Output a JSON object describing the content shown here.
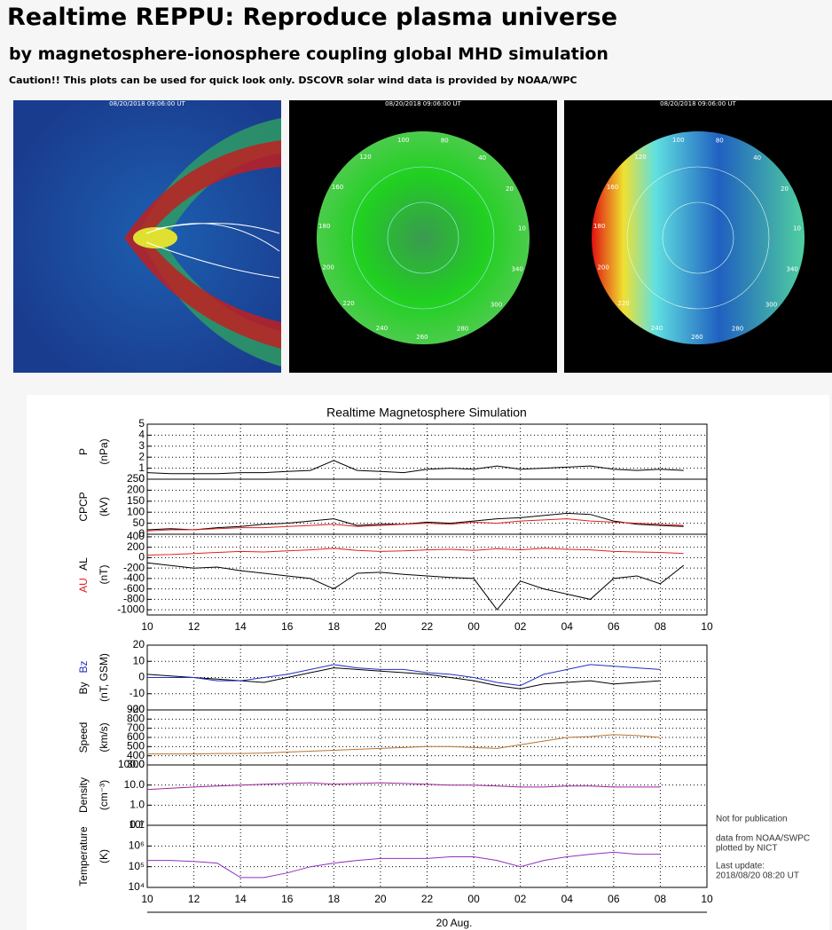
{
  "header": {
    "title": "Realtime REPPU: Reproduce plasma universe",
    "subtitle": "by magnetosphere-ionosphere coupling global MHD simulation",
    "caution": "Caution!! This plots can be used for quick look only. DSCOVR solar wind data is provided by NOAA/WPC"
  },
  "images": [
    {
      "timestamp": "08/20/2018 09:06:00 UT"
    },
    {
      "timestamp": "08/20/2018 09:06:00 UT",
      "labels": [
        "100",
        "80",
        "40",
        "20",
        "10",
        "340",
        "300",
        "280",
        "260",
        "240",
        "220",
        "200",
        "180",
        "160",
        "120"
      ]
    },
    {
      "timestamp": "08/20/2018 09:06:00 UT",
      "labels": [
        "100",
        "80",
        "40",
        "20",
        "10",
        "340",
        "300",
        "280",
        "260",
        "240",
        "220",
        "200",
        "180",
        "160",
        "120"
      ]
    }
  ],
  "plot_title": "Realtime Magnetosphere Simulation",
  "xlabel": "20 Aug.",
  "notes": {
    "publication": "Not for publication",
    "source": "data from NOAA/SWPC",
    "plotted": "plotted by NICT",
    "update_label": "Last update:",
    "update_time": "2018/08/20 08:20 UT"
  },
  "chart_data": [
    {
      "type": "line",
      "ylabel": "P",
      "yunit": "(nPa)",
      "xlim": [
        10,
        34
      ],
      "ylim": [
        0,
        5
      ],
      "yticks": [
        0,
        1,
        2,
        3,
        4,
        5
      ],
      "grid": true,
      "x": [
        10,
        11,
        12,
        13,
        14,
        15,
        16,
        17,
        18,
        19,
        20,
        21,
        22,
        23,
        24,
        25,
        26,
        27,
        28,
        29,
        30,
        31,
        32,
        33
      ],
      "color": "#000000",
      "values": [
        0.6,
        0.5,
        0.5,
        0.5,
        0.6,
        0.6,
        0.7,
        0.8,
        1.7,
        0.8,
        0.7,
        0.6,
        0.9,
        1.0,
        0.9,
        1.2,
        0.9,
        1.0,
        1.1,
        1.2,
        0.9,
        0.8,
        0.9,
        0.8
      ]
    },
    {
      "type": "line",
      "ylabel": "CPCP",
      "yunit": "(kV)",
      "xlim": [
        10,
        34
      ],
      "ylim": [
        0,
        250
      ],
      "yticks": [
        0,
        50,
        100,
        150,
        200,
        250
      ],
      "grid": true,
      "x": [
        10,
        11,
        12,
        13,
        14,
        15,
        16,
        17,
        18,
        19,
        20,
        21,
        22,
        23,
        24,
        25,
        26,
        27,
        28,
        29,
        30,
        31,
        32,
        33
      ],
      "series": [
        {
          "color": "#000000",
          "values": [
            20,
            25,
            20,
            30,
            35,
            45,
            50,
            60,
            70,
            40,
            45,
            45,
            55,
            50,
            60,
            70,
            75,
            85,
            95,
            90,
            60,
            45,
            40,
            35
          ]
        },
        {
          "color": "#e02020",
          "values": [
            15,
            20,
            20,
            25,
            30,
            30,
            35,
            40,
            45,
            35,
            40,
            45,
            50,
            45,
            55,
            50,
            60,
            65,
            70,
            60,
            55,
            50,
            45,
            40
          ]
        }
      ]
    },
    {
      "type": "line",
      "yunit": "(nT)",
      "xlim": [
        10,
        34
      ],
      "ylim": [
        -1100,
        450
      ],
      "yticks": [
        -1000,
        -800,
        -600,
        -400,
        -200,
        0,
        200,
        400
      ],
      "grid": true,
      "xticks": [
        10,
        12,
        14,
        16,
        18,
        20,
        22,
        {
          "value": 24,
          "label": "00"
        },
        {
          "value": 26,
          "label": "02"
        },
        {
          "value": 28,
          "label": "04"
        },
        {
          "value": 30,
          "label": "06"
        },
        {
          "value": 32,
          "label": "08"
        },
        {
          "value": 34,
          "label": "10"
        }
      ],
      "x": [
        10,
        11,
        12,
        13,
        14,
        15,
        16,
        17,
        18,
        19,
        20,
        21,
        22,
        23,
        24,
        25,
        26,
        27,
        28,
        29,
        30,
        31,
        32,
        33
      ],
      "series": [
        {
          "name": "AU",
          "color": "#e02020",
          "values": [
            50,
            60,
            80,
            100,
            120,
            110,
            130,
            150,
            180,
            140,
            120,
            130,
            150,
            160,
            140,
            170,
            150,
            180,
            160,
            150,
            120,
            110,
            100,
            80
          ]
        },
        {
          "name": "AL",
          "color": "#000000",
          "values": [
            -100,
            -150,
            -200,
            -180,
            -250,
            -300,
            -350,
            -400,
            -600,
            -300,
            -280,
            -320,
            -350,
            -380,
            -400,
            -1000,
            -450,
            -600,
            -700,
            -800,
            -400,
            -350,
            -500,
            -150
          ]
        }
      ]
    },
    {
      "type": "line",
      "yunit": "(nT, GSM)",
      "xlim": [
        10,
        34
      ],
      "ylim": [
        -20,
        20
      ],
      "yticks": [
        -20,
        -10,
        0,
        10,
        20
      ],
      "grid": true,
      "x": [
        10,
        11,
        12,
        13,
        14,
        15,
        16,
        17,
        18,
        19,
        20,
        21,
        22,
        23,
        24,
        25,
        26,
        27,
        28,
        29,
        30,
        31,
        32
      ],
      "series": [
        {
          "name": "By",
          "color": "#000000",
          "values": [
            2,
            1,
            0,
            -1,
            -2,
            -3,
            0,
            3,
            6,
            5,
            4,
            3,
            2,
            0,
            -2,
            -5,
            -7,
            -4,
            -3,
            -2,
            -4,
            -3,
            -2
          ]
        },
        {
          "name": "Bz",
          "color": "#2030c0",
          "values": [
            0,
            0,
            0,
            -2,
            -2,
            0,
            2,
            5,
            8,
            6,
            5,
            5,
            3,
            2,
            0,
            -3,
            -5,
            2,
            5,
            8,
            7,
            6,
            5
          ]
        }
      ]
    },
    {
      "type": "line",
      "ylabel": "Speed",
      "yunit": "(km/s)",
      "xlim": [
        10,
        34
      ],
      "ylim": [
        300,
        900
      ],
      "yticks": [
        300,
        400,
        500,
        600,
        700,
        800,
        900
      ],
      "grid": true,
      "x": [
        10,
        11,
        12,
        13,
        14,
        15,
        16,
        17,
        18,
        19,
        20,
        21,
        22,
        23,
        24,
        25,
        26,
        27,
        28,
        29,
        30,
        31,
        32
      ],
      "color": "#b87333",
      "values": [
        420,
        420,
        420,
        425,
        425,
        430,
        440,
        450,
        460,
        470,
        480,
        490,
        500,
        500,
        490,
        480,
        520,
        560,
        600,
        610,
        630,
        620,
        600
      ]
    },
    {
      "type": "line",
      "ylabel": "Density",
      "yunit": "(cm⁻³)",
      "yscale": "log",
      "xlim": [
        10,
        34
      ],
      "ylim": [
        0.1,
        100
      ],
      "yticks": [
        0.1,
        {
          "value": 1,
          "label": "1.0"
        },
        {
          "value": 10,
          "label": "10.0"
        },
        {
          "value": 100,
          "label": "100.0"
        }
      ],
      "grid": true,
      "x": [
        10,
        11,
        12,
        13,
        14,
        15,
        16,
        17,
        18,
        19,
        20,
        21,
        22,
        23,
        24,
        25,
        26,
        27,
        28,
        29,
        30,
        31,
        32
      ],
      "color": "#a020a0",
      "values": [
        6,
        7,
        8,
        9,
        10,
        11,
        12,
        13,
        11,
        12,
        13,
        12,
        11,
        10,
        10,
        9,
        8,
        8,
        9,
        9,
        8,
        8,
        8
      ]
    },
    {
      "type": "line",
      "ylabel": "Temperature",
      "yunit": "(K)",
      "yscale": "log",
      "xlim": [
        10,
        34
      ],
      "ylim": [
        10000,
        10000000
      ],
      "yticks": [
        {
          "value": 10000,
          "label": "10⁴"
        },
        {
          "value": 100000,
          "label": "10⁵"
        },
        {
          "value": 1000000,
          "label": "10⁶"
        },
        {
          "value": 10000000,
          "label": "10⁷"
        }
      ],
      "grid": true,
      "xticks": [
        10,
        12,
        14,
        16,
        18,
        20,
        22,
        {
          "value": 24,
          "label": "00"
        },
        {
          "value": 26,
          "label": "02"
        },
        {
          "value": 28,
          "label": "04"
        },
        {
          "value": 30,
          "label": "06"
        },
        {
          "value": 32,
          "label": "08"
        },
        {
          "value": 34,
          "label": "10"
        }
      ],
      "x": [
        10,
        11,
        12,
        13,
        14,
        15,
        16,
        17,
        18,
        19,
        20,
        21,
        22,
        23,
        24,
        25,
        26,
        27,
        28,
        29,
        30,
        31,
        32
      ],
      "color": "#9030c0",
      "values": [
        200000,
        200000,
        180000,
        150000,
        30000,
        30000,
        50000,
        100000,
        150000,
        200000,
        250000,
        250000,
        250000,
        300000,
        300000,
        200000,
        100000,
        200000,
        300000,
        400000,
        500000,
        400000,
        400000
      ]
    }
  ]
}
